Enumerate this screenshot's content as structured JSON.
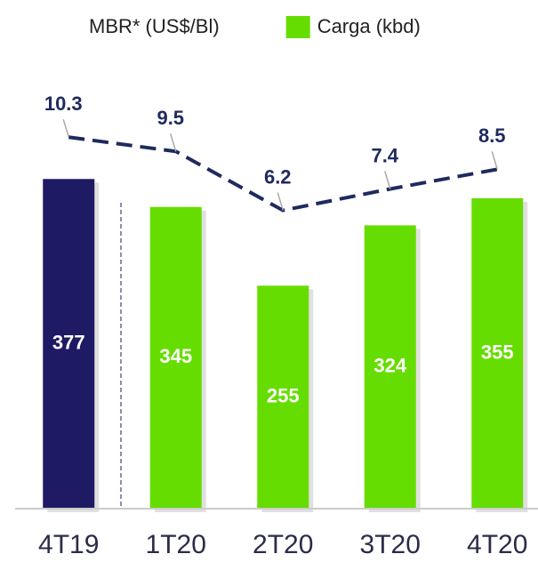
{
  "chart_data": {
    "type": "combo",
    "categories": [
      "4T19",
      "1T20",
      "2T20",
      "3T20",
      "4T20"
    ],
    "series": [
      {
        "name": "MBR* (US$/Bl)",
        "kind": "line",
        "axis": "y2",
        "color": "#1f2a5e",
        "dashed": true,
        "values": [
          10.3,
          9.5,
          6.2,
          7.4,
          8.5
        ]
      },
      {
        "name": "Carga (kbd)",
        "kind": "bar",
        "color": "#66dd00",
        "colors": [
          "#1f1a64",
          "#66dd00",
          "#66dd00",
          "#66dd00",
          "#66dd00"
        ],
        "values": [
          377,
          345,
          255,
          324,
          355
        ]
      }
    ],
    "ylim": [
      0,
      480
    ],
    "y2lim": [
      -10.5,
      13
    ]
  }
}
